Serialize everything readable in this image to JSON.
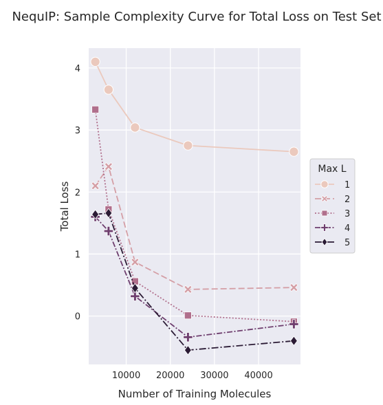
{
  "chart_data": {
    "type": "line",
    "title": "NequIP: Sample Complexity Curve for Total Loss on Test Set",
    "xlabel": "Number of Training Molecules",
    "ylabel": "Total Loss",
    "xlim": [
      1500,
      49500
    ],
    "ylim": [
      -0.78,
      4.32
    ],
    "xticks": [
      10000,
      20000,
      30000,
      40000
    ],
    "xtick_labels": [
      "10000",
      "20000",
      "30000",
      "40000"
    ],
    "yticks": [
      0,
      1,
      2,
      3,
      4
    ],
    "ytick_labels": [
      "0",
      "1",
      "2",
      "3",
      "4"
    ],
    "grid": true,
    "legend": {
      "title": "Max L",
      "placement": "right"
    },
    "x": [
      3000,
      6000,
      12000,
      24000,
      48000
    ],
    "series": [
      {
        "name": "1",
        "values": [
          4.1,
          3.65,
          3.04,
          2.75,
          2.65
        ],
        "color": "#ebc9bd",
        "dash": "",
        "marker": "circle"
      },
      {
        "name": "2",
        "values": [
          2.1,
          2.41,
          0.87,
          0.43,
          0.46
        ],
        "color": "#d49ea5",
        "dash": "9,4",
        "marker": "x"
      },
      {
        "name": "3",
        "values": [
          3.33,
          1.72,
          0.56,
          0.01,
          -0.09
        ],
        "color": "#b06f8c",
        "dash": "2,2.5",
        "marker": "square"
      },
      {
        "name": "4",
        "values": [
          1.6,
          1.37,
          0.32,
          -0.34,
          -0.13
        ],
        "color": "#6e3e6e",
        "dash": "8,2.5,2,2.5",
        "marker": "plus"
      },
      {
        "name": "5",
        "values": [
          1.64,
          1.66,
          0.45,
          -0.55,
          -0.4
        ],
        "color": "#2b1b35",
        "dash": "10,3,2,3",
        "marker": "diamond"
      }
    ]
  }
}
